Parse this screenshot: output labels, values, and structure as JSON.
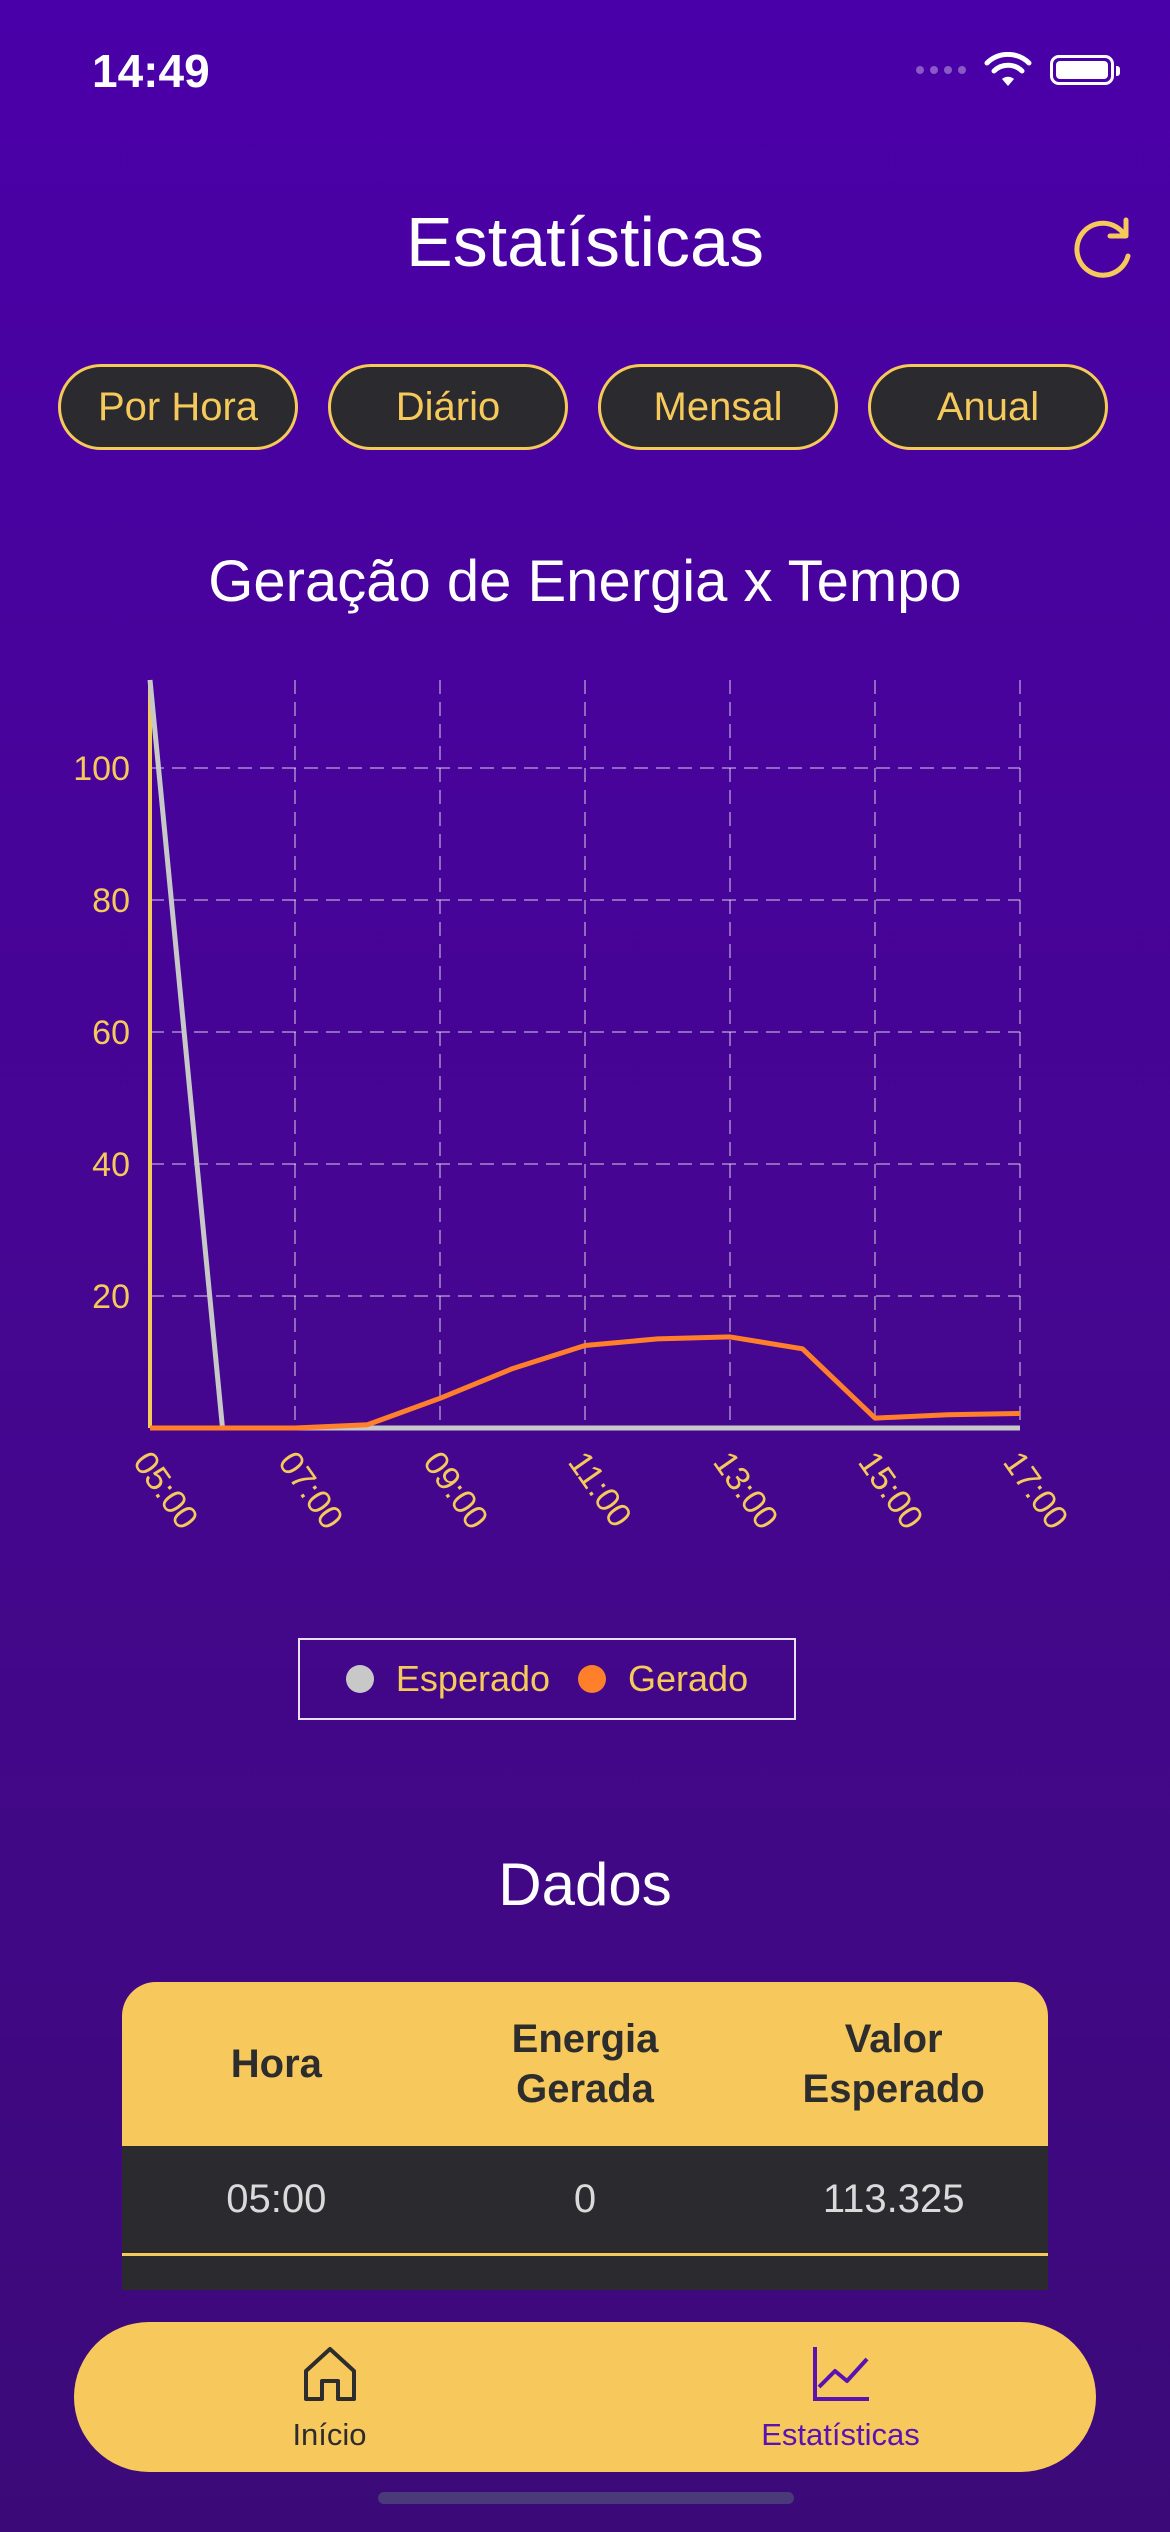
{
  "status_bar": {
    "time": "14:49"
  },
  "header": {
    "title": "Estatísticas",
    "refresh_icon": "refresh-icon"
  },
  "tabs": [
    {
      "label": "Por Hora",
      "active": true
    },
    {
      "label": "Diário",
      "active": false
    },
    {
      "label": "Mensal",
      "active": false
    },
    {
      "label": "Anual",
      "active": false
    }
  ],
  "chart_title": "Geração de Energia x Tempo",
  "colors": {
    "accent": "#f7c85c",
    "esperado": "#c8c8c8",
    "gerado": "#ff7f2a",
    "background": "#4a00a8",
    "dark": "#2b2a2e"
  },
  "chart_data": {
    "type": "line",
    "x": [
      "05:00",
      "06:00",
      "07:00",
      "08:00",
      "09:00",
      "10:00",
      "11:00",
      "12:00",
      "13:00",
      "14:00",
      "15:00",
      "16:00",
      "17:00"
    ],
    "x_tick_labels": [
      "05:00",
      "07:00",
      "09:00",
      "11:00",
      "13:00",
      "15:00",
      "17:00"
    ],
    "y_ticks": [
      20,
      40,
      60,
      80,
      100
    ],
    "ylim": [
      0,
      113.325
    ],
    "grid": true,
    "legend_position": "bottom",
    "series": [
      {
        "name": "Esperado",
        "color": "#c8c8c8",
        "values": [
          113.325,
          0,
          0,
          0,
          0,
          0,
          0,
          0,
          0,
          0,
          0,
          0,
          0
        ]
      },
      {
        "name": "Gerado",
        "color": "#ff7f2a",
        "values": [
          0,
          0,
          0,
          0.5,
          4.5,
          9,
          12.5,
          13.5,
          13.8,
          12,
          1.5,
          2,
          2.2
        ]
      }
    ]
  },
  "legend": {
    "esperado": "Esperado",
    "gerado": "Gerado"
  },
  "data_section": {
    "title": "Dados",
    "headers": [
      "Hora",
      "Energia\nGerada",
      "Valor\nEsperado"
    ],
    "rows": [
      [
        "05:00",
        "0",
        "113.325"
      ]
    ]
  },
  "bottom_nav": {
    "items": [
      {
        "label": "Início",
        "icon": "home-icon",
        "active": false
      },
      {
        "label": "Estatísticas",
        "icon": "chart-icon",
        "active": true
      }
    ]
  }
}
